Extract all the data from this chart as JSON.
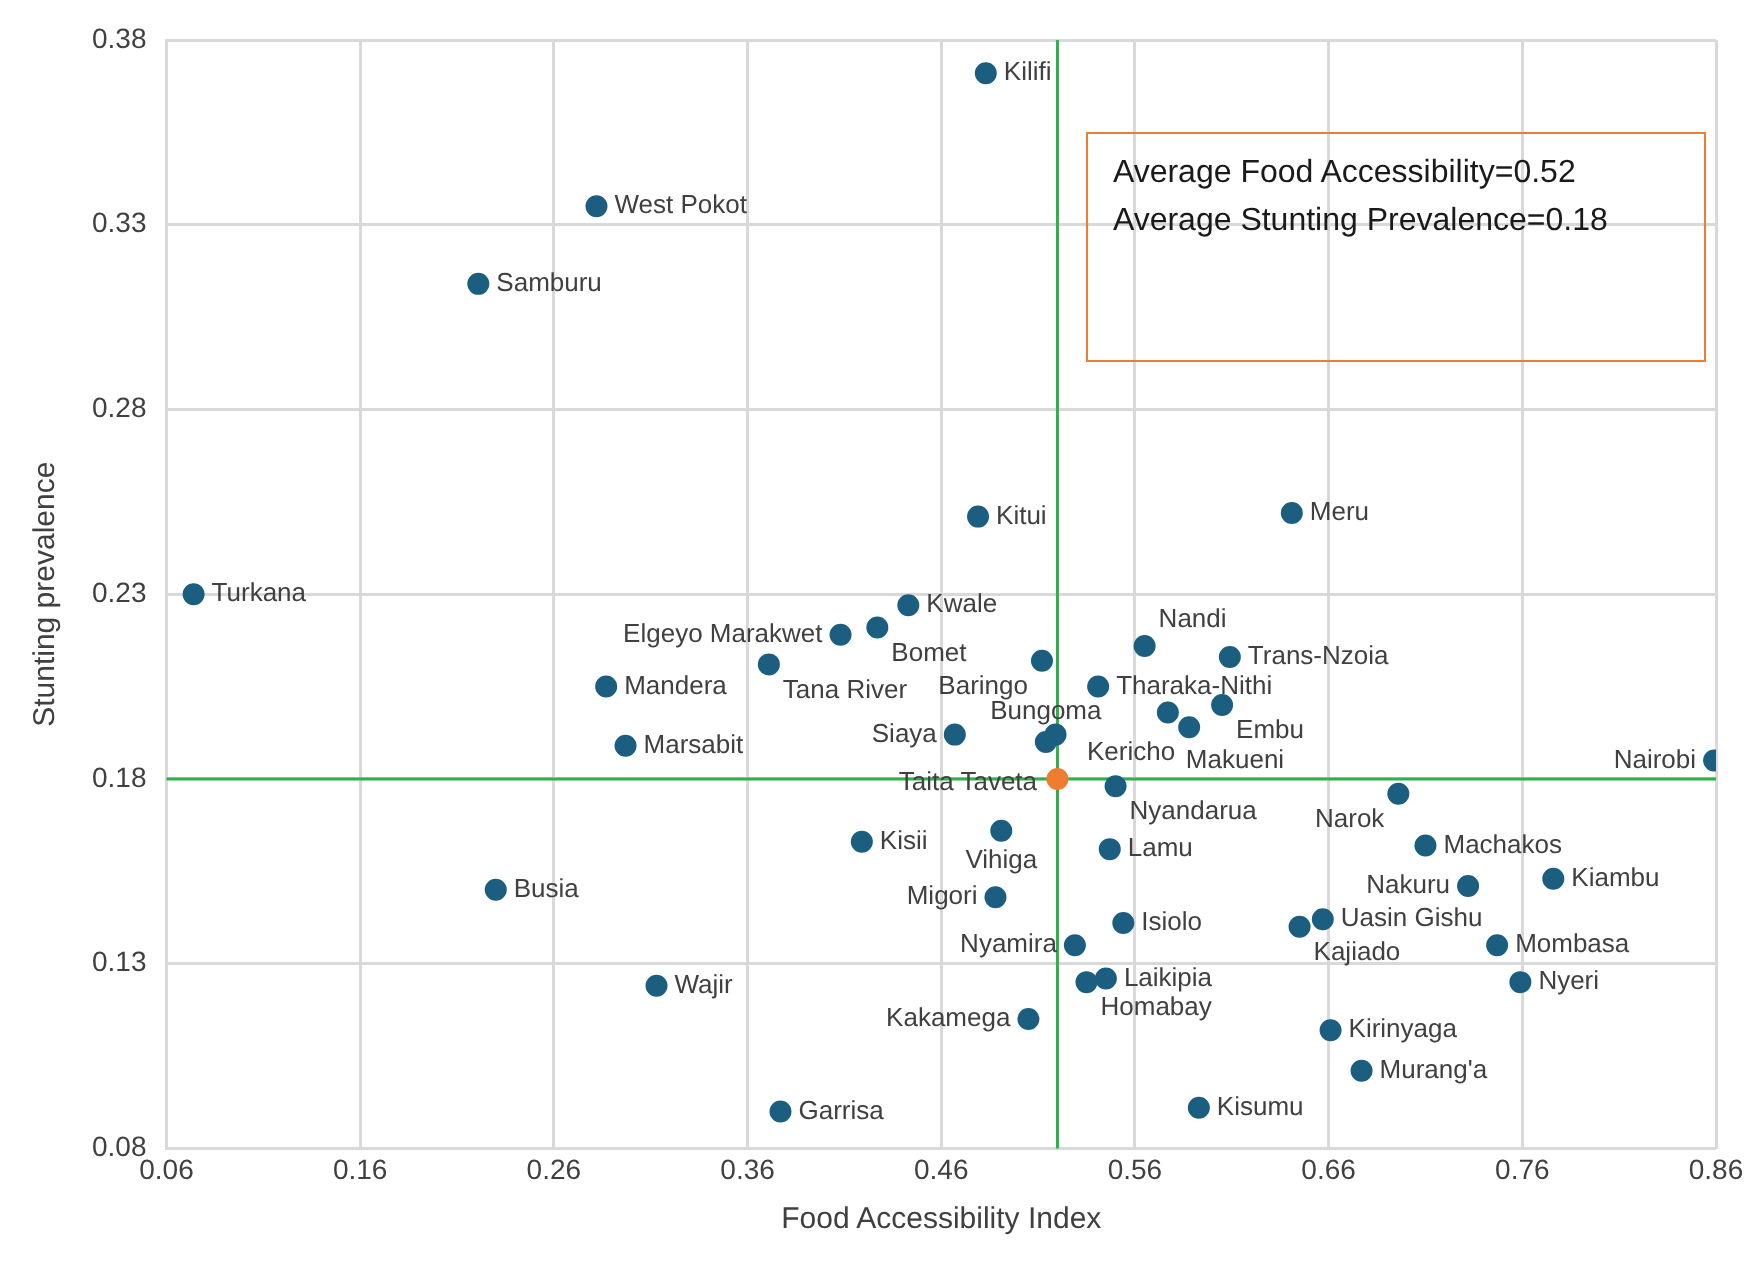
{
  "chart_data": {
    "type": "scatter",
    "xlabel": "Food Accessibility Index",
    "ylabel": "Stunting prevalence",
    "xlim": [
      0.06,
      0.86
    ],
    "xticks": [
      0.06,
      0.16,
      0.26,
      0.36,
      0.46,
      0.56,
      0.66,
      0.76,
      0.86
    ],
    "ylim": [
      0.08,
      0.38
    ],
    "yticks": [
      0.08,
      0.13,
      0.18,
      0.23,
      0.28,
      0.33,
      0.38
    ],
    "grid": true,
    "legend": false,
    "marker": "circle",
    "series": [
      {
        "color": "#1b5e80",
        "x": [
          0.483,
          0.282,
          0.221,
          0.074,
          0.479,
          0.641,
          0.443,
          0.408,
          0.427,
          0.371,
          0.287,
          0.297,
          0.467,
          0.419,
          0.23,
          0.313,
          0.377,
          0.512,
          0.565,
          0.609,
          0.541,
          0.577,
          0.605,
          0.588,
          0.519,
          0.514,
          0.859,
          0.55,
          0.696,
          0.491,
          0.547,
          0.71,
          0.732,
          0.776,
          0.488,
          0.554,
          0.645,
          0.657,
          0.747,
          0.529,
          0.535,
          0.545,
          0.759,
          0.505,
          0.661,
          0.677,
          0.593
        ],
        "values": [
          0.371,
          0.335,
          0.314,
          0.23,
          0.251,
          0.252,
          0.227,
          0.219,
          0.221,
          0.211,
          0.205,
          0.189,
          0.192,
          0.163,
          0.15,
          0.124,
          0.09,
          0.212,
          0.216,
          0.213,
          0.205,
          0.198,
          0.2,
          0.194,
          0.192,
          0.19,
          0.185,
          0.178,
          0.176,
          0.166,
          0.161,
          0.162,
          0.151,
          0.153,
          0.148,
          0.141,
          0.14,
          0.142,
          0.135,
          0.135,
          0.125,
          0.126,
          0.125,
          0.115,
          0.112,
          0.101,
          0.091
        ]
      },
      {
        "color": "#ee7d31",
        "x": [
          0.52
        ],
        "values": [
          0.18
        ]
      }
    ],
    "ref_lines": [
      {
        "axis": "x",
        "value": 0.52,
        "color": "#2eb04a"
      },
      {
        "axis": "y",
        "value": 0.18,
        "color": "#2eb04a"
      }
    ],
    "annotations": [
      "Average Food Accessibility=0.52",
      "Average Stunting Prevalence=0.18",
      {
        "text": "Kilifi",
        "x": 0.483,
        "y": 0.371
      },
      {
        "text": "West Pokot",
        "x": 0.282,
        "y": 0.335
      },
      {
        "text": "Samburu",
        "x": 0.221,
        "y": 0.314
      },
      {
        "text": "Turkana",
        "x": 0.074,
        "y": 0.23
      },
      {
        "text": "Kitui",
        "x": 0.479,
        "y": 0.251
      },
      {
        "text": "Meru",
        "x": 0.641,
        "y": 0.252
      },
      {
        "text": "Kwale",
        "x": 0.443,
        "y": 0.227
      },
      {
        "text": "Elgeyo Marakwet",
        "x": 0.408,
        "y": 0.219
      },
      {
        "text": "Bomet",
        "x": 0.427,
        "y": 0.221
      },
      {
        "text": "Tana River",
        "x": 0.371,
        "y": 0.211
      },
      {
        "text": "Mandera",
        "x": 0.287,
        "y": 0.205
      },
      {
        "text": "Marsabit",
        "x": 0.297,
        "y": 0.189
      },
      {
        "text": "Siaya",
        "x": 0.467,
        "y": 0.192
      },
      {
        "text": "Kisii",
        "x": 0.419,
        "y": 0.163
      },
      {
        "text": "Busia",
        "x": 0.23,
        "y": 0.15
      },
      {
        "text": "Wajir",
        "x": 0.313,
        "y": 0.124
      },
      {
        "text": "Garrisa",
        "x": 0.377,
        "y": 0.09
      },
      {
        "text": "Baringo",
        "x": 0.512,
        "y": 0.212
      },
      {
        "text": "Nandi",
        "x": 0.565,
        "y": 0.216
      },
      {
        "text": "Trans-Nzoia",
        "x": 0.609,
        "y": 0.213
      },
      {
        "text": "Tharaka-Nithi",
        "x": 0.541,
        "y": 0.205
      },
      {
        "text": "Makueni",
        "x": 0.577,
        "y": 0.198
      },
      {
        "text": "Embu",
        "x": 0.605,
        "y": 0.2
      },
      {
        "text": "Kericho",
        "x": 0.588,
        "y": 0.194
      },
      {
        "text": "Taita Taveta",
        "x": 0.519,
        "y": 0.192
      },
      {
        "text": "Bungoma",
        "x": 0.514,
        "y": 0.19
      },
      {
        "text": "Nairobi",
        "x": 0.859,
        "y": 0.185
      },
      {
        "text": "Nyandarua",
        "x": 0.55,
        "y": 0.178
      },
      {
        "text": "Narok",
        "x": 0.696,
        "y": 0.176
      },
      {
        "text": "Vihiga",
        "x": 0.491,
        "y": 0.166
      },
      {
        "text": "Lamu",
        "x": 0.547,
        "y": 0.161
      },
      {
        "text": "Machakos",
        "x": 0.71,
        "y": 0.162
      },
      {
        "text": "Nakuru",
        "x": 0.732,
        "y": 0.151
      },
      {
        "text": "Kiambu",
        "x": 0.776,
        "y": 0.153
      },
      {
        "text": "Migori",
        "x": 0.488,
        "y": 0.148
      },
      {
        "text": "Isiolo",
        "x": 0.554,
        "y": 0.141
      },
      {
        "text": "Kajiado",
        "x": 0.645,
        "y": 0.14
      },
      {
        "text": "Uasin Gishu",
        "x": 0.657,
        "y": 0.142
      },
      {
        "text": "Mombasa",
        "x": 0.747,
        "y": 0.135
      },
      {
        "text": "Nyamira",
        "x": 0.529,
        "y": 0.135
      },
      {
        "text": "Homabay",
        "x": 0.535,
        "y": 0.125
      },
      {
        "text": "Laikipia",
        "x": 0.545,
        "y": 0.126
      },
      {
        "text": "Nyeri",
        "x": 0.759,
        "y": 0.125
      },
      {
        "text": "Kakamega",
        "x": 0.505,
        "y": 0.115
      },
      {
        "text": "Kirinyaga",
        "x": 0.661,
        "y": 0.112
      },
      {
        "text": "Murang'a",
        "x": 0.677,
        "y": 0.101
      },
      {
        "text": "Kisumu",
        "x": 0.593,
        "y": 0.091
      }
    ]
  }
}
